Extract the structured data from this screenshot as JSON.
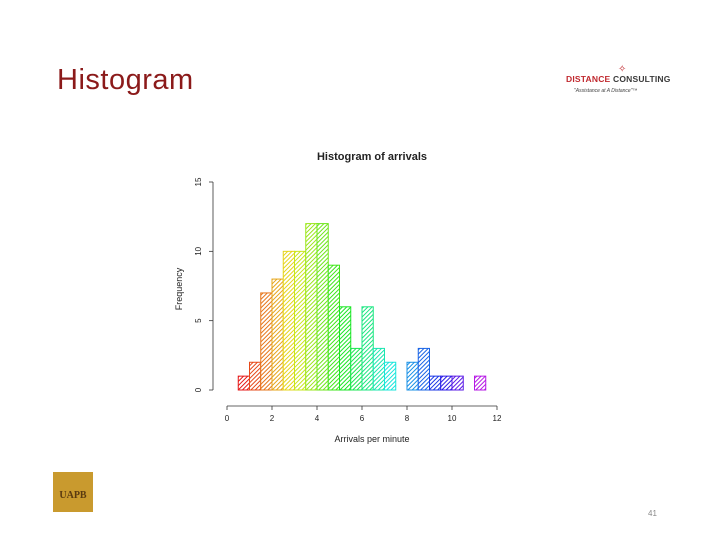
{
  "slide": {
    "title": "Histogram",
    "page_number": "41"
  },
  "logo": {
    "word1": "DISTANCE",
    "word2": "CONSULTING",
    "tagline": "\"Assistance at A Distance\"™",
    "accent_color": "#c0282e"
  },
  "footer_logo": {
    "text": "UAPB",
    "color": "#c99a2e"
  },
  "chart_data": {
    "type": "bar",
    "title": "Histogram of arrivals",
    "xlabel": "Arrivals per minute",
    "ylabel": "Frequency",
    "xlim": [
      0,
      12
    ],
    "ylim": [
      0,
      15
    ],
    "x_ticks": [
      "0",
      "2",
      "4",
      "6",
      "8",
      "10",
      "12"
    ],
    "y_ticks": [
      "0",
      "5",
      "10",
      "15"
    ],
    "bin_width": 0.5,
    "bins": [
      {
        "x0": 0.5,
        "x1": 1.0,
        "count": 1
      },
      {
        "x0": 1.0,
        "x1": 1.5,
        "count": 2
      },
      {
        "x0": 1.5,
        "x1": 2.0,
        "count": 7
      },
      {
        "x0": 2.0,
        "x1": 2.5,
        "count": 8
      },
      {
        "x0": 2.5,
        "x1": 3.0,
        "count": 10
      },
      {
        "x0": 3.0,
        "x1": 3.5,
        "count": 10
      },
      {
        "x0": 3.5,
        "x1": 4.0,
        "count": 12
      },
      {
        "x0": 4.0,
        "x1": 4.5,
        "count": 12
      },
      {
        "x0": 4.5,
        "x1": 5.0,
        "count": 9
      },
      {
        "x0": 5.0,
        "x1": 5.5,
        "count": 6
      },
      {
        "x0": 5.5,
        "x1": 6.0,
        "count": 3
      },
      {
        "x0": 6.0,
        "x1": 6.5,
        "count": 6
      },
      {
        "x0": 6.5,
        "x1": 7.0,
        "count": 3
      },
      {
        "x0": 7.0,
        "x1": 7.5,
        "count": 2
      },
      {
        "x0": 7.5,
        "x1": 8.0,
        "count": 0
      },
      {
        "x0": 8.0,
        "x1": 8.5,
        "count": 2
      },
      {
        "x0": 8.5,
        "x1": 9.0,
        "count": 3
      },
      {
        "x0": 9.0,
        "x1": 9.5,
        "count": 1
      },
      {
        "x0": 9.5,
        "x1": 10.0,
        "count": 1
      },
      {
        "x0": 10.0,
        "x1": 10.5,
        "count": 1
      },
      {
        "x0": 10.5,
        "x1": 11.0,
        "count": 0
      },
      {
        "x0": 11.0,
        "x1": 11.5,
        "count": 1
      }
    ],
    "bar_style": "rainbow hatched",
    "grid": false,
    "legend": "none"
  }
}
